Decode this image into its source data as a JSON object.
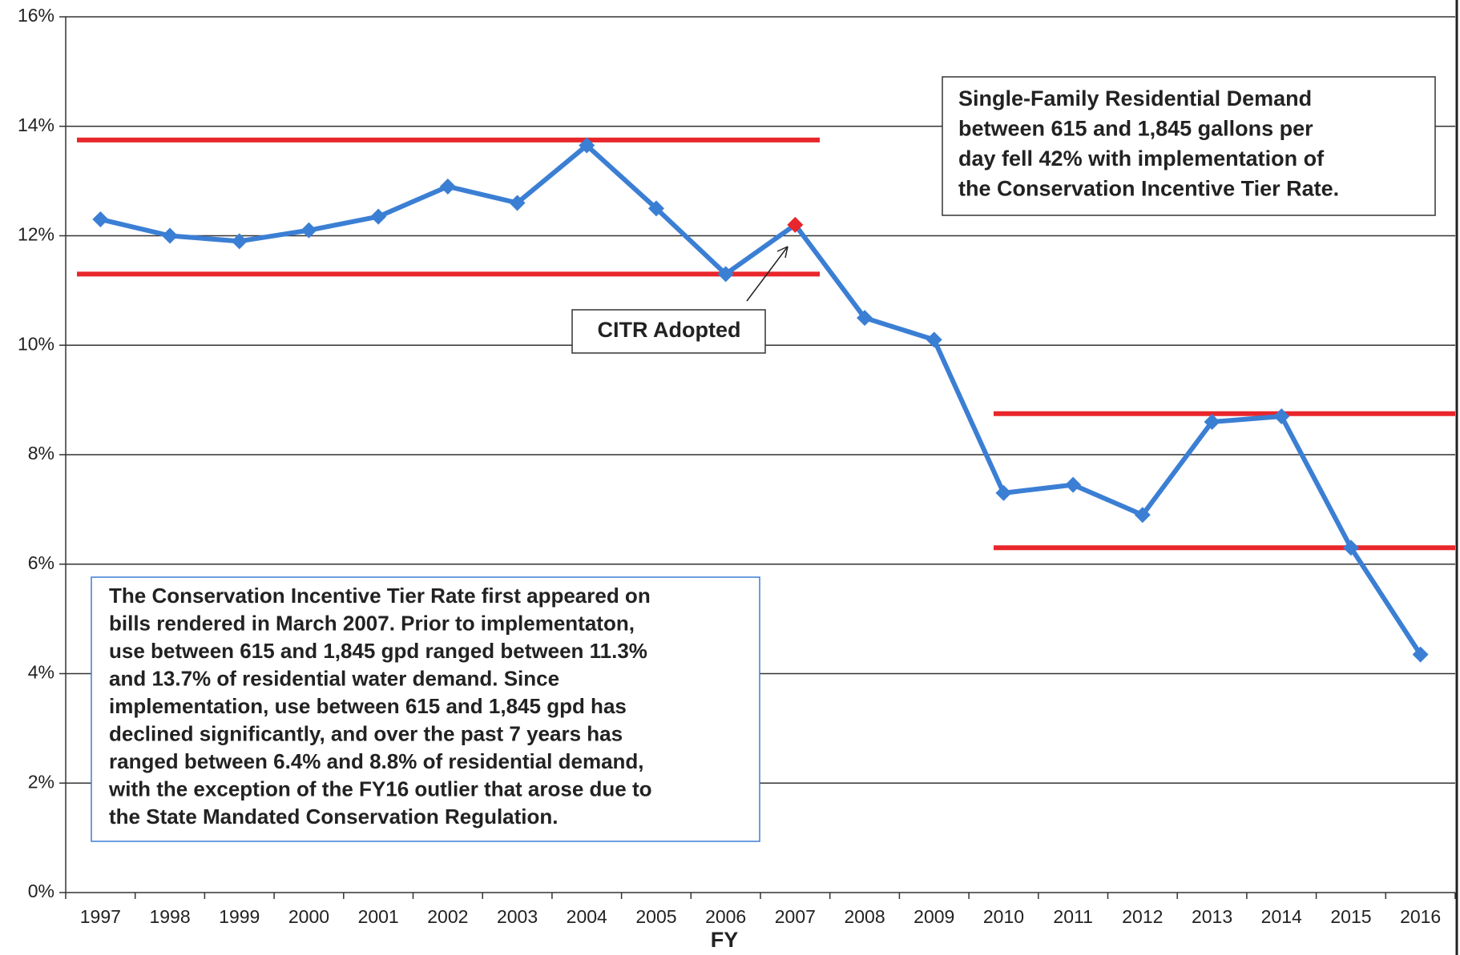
{
  "chart_data": {
    "type": "line",
    "x_label": "FY",
    "categories": [
      "1997",
      "1998",
      "1999",
      "2000",
      "2001",
      "2002",
      "2003",
      "2004",
      "2005",
      "2006",
      "2007",
      "2008",
      "2009",
      "2010",
      "2011",
      "2012",
      "2013",
      "2014",
      "2015",
      "2016"
    ],
    "series": [
      {
        "color": "#3b7fd4",
        "values": [
          12.3,
          12.0,
          11.9,
          12.1,
          12.35,
          12.9,
          12.6,
          13.65,
          12.5,
          11.3,
          12.2,
          10.5,
          10.1,
          7.3,
          7.45,
          6.9,
          8.6,
          8.7,
          6.3,
          4.35
        ],
        "point_colors": [
          "#3b7fd4",
          "#3b7fd4",
          "#3b7fd4",
          "#3b7fd4",
          "#3b7fd4",
          "#3b7fd4",
          "#3b7fd4",
          "#3b7fd4",
          "#3b7fd4",
          "#3b7fd4",
          "#e8262b",
          "#3b7fd4",
          "#3b7fd4",
          "#3b7fd4",
          "#3b7fd4",
          "#3b7fd4",
          "#3b7fd4",
          "#3b7fd4",
          "#3b7fd4",
          "#3b7fd4"
        ]
      }
    ],
    "reference_lines": {
      "color": "#e8262b",
      "values": [
        13.75,
        11.3,
        8.75,
        6.3
      ]
    },
    "ylim": [
      0,
      16
    ],
    "yticks": [
      {
        "value": 0,
        "label": "0%"
      },
      {
        "value": 2,
        "label": "2%"
      },
      {
        "value": 4,
        "label": "4%"
      },
      {
        "value": 6,
        "label": "6%"
      },
      {
        "value": 8,
        "label": "8%"
      },
      {
        "value": 10,
        "label": "10%"
      },
      {
        "value": 12,
        "label": "12%"
      },
      {
        "value": 14,
        "label": "14%"
      },
      {
        "value": 16,
        "label": "16%"
      }
    ],
    "grid": true,
    "annotations": {
      "summary": [
        "Single-Family Residential Demand",
        "between 615 and 1,845 gallons per",
        "day fell 42% with implementation of",
        "the Conservation Incentive Tier Rate."
      ],
      "citr": "CITR Adopted",
      "note": [
        "The Conservation Incentive Tier Rate first appeared on",
        "bills rendered in March 2007. Prior to implementaton,",
        "use between 615 and 1,845 gpd ranged between 11.3%",
        "and 13.7% of residential water demand. Since",
        "implementation, use between 615 and 1,845 gpd has",
        "declined significantly, and over the past 7 years has",
        "ranged between 6.4% and 8.8% of residential demand,",
        "with the exception of the FY16 outlier that arose due to",
        "the State Mandated Conservation Regulation."
      ]
    }
  }
}
